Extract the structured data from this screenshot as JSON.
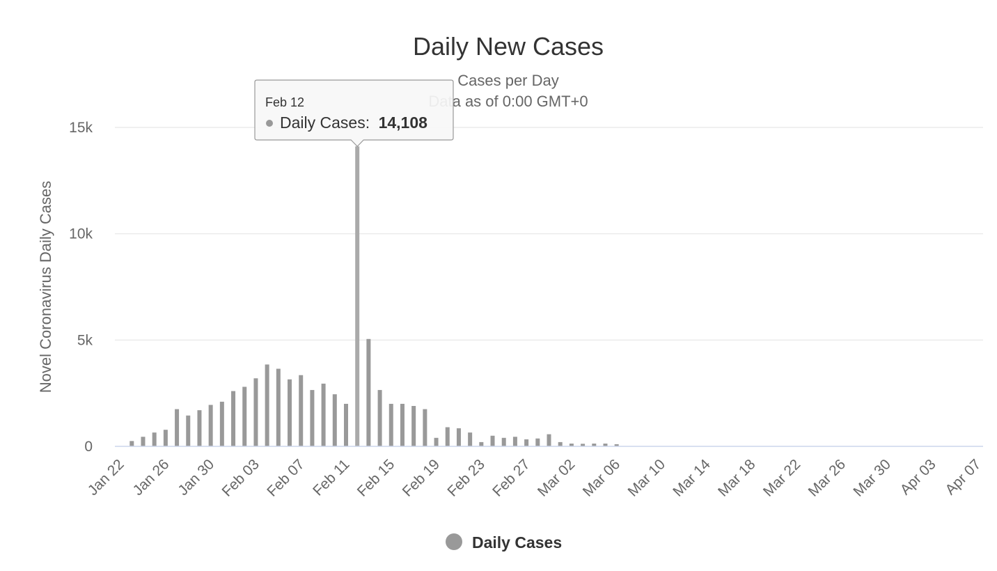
{
  "chart_data": {
    "type": "bar",
    "title": "Daily New Cases",
    "subtitle_lines": [
      "Cases per Day",
      "Data as of 0:00 GMT+0"
    ],
    "ylabel": "Novel Coronavirus Daily Cases",
    "xlabel": "",
    "ylim": [
      0,
      15000
    ],
    "y_ticks": [
      0,
      5000,
      10000,
      15000
    ],
    "y_tick_labels": [
      "0",
      "5k",
      "10k",
      "15k"
    ],
    "grid": true,
    "legend_position": "bottom-center",
    "bar_color": "#999999",
    "highlight_color": "#aaaaaa",
    "categories": [
      "Jan 22",
      "Jan 23",
      "Jan 24",
      "Jan 25",
      "Jan 26",
      "Jan 27",
      "Jan 28",
      "Jan 29",
      "Jan 30",
      "Jan 31",
      "Feb 01",
      "Feb 02",
      "Feb 03",
      "Feb 04",
      "Feb 05",
      "Feb 06",
      "Feb 07",
      "Feb 08",
      "Feb 09",
      "Feb 10",
      "Feb 11",
      "Feb 12",
      "Feb 13",
      "Feb 14",
      "Feb 15",
      "Feb 16",
      "Feb 17",
      "Feb 18",
      "Feb 19",
      "Feb 20",
      "Feb 21",
      "Feb 22",
      "Feb 23",
      "Feb 24",
      "Feb 25",
      "Feb 26",
      "Feb 27",
      "Feb 28",
      "Feb 29",
      "Mar 01",
      "Mar 02",
      "Mar 03",
      "Mar 04",
      "Mar 05",
      "Mar 06",
      "Mar 07",
      "Mar 08",
      "Mar 09",
      "Mar 10",
      "Mar 11",
      "Mar 12",
      "Mar 13",
      "Mar 14",
      "Mar 15",
      "Mar 16",
      "Mar 17",
      "Mar 18",
      "Mar 19",
      "Mar 20",
      "Mar 21",
      "Mar 22",
      "Mar 23",
      "Mar 24",
      "Mar 25",
      "Mar 26",
      "Mar 27",
      "Mar 28",
      "Mar 29",
      "Mar 30",
      "Mar 31",
      "Apr 01",
      "Apr 02",
      "Apr 03",
      "Apr 04",
      "Apr 05",
      "Apr 06",
      "Apr 07"
    ],
    "x_tick_labels": [
      "Jan 22",
      "Jan 26",
      "Jan 30",
      "Feb 03",
      "Feb 07",
      "Feb 11",
      "Feb 15",
      "Feb 19",
      "Feb 23",
      "Feb 27",
      "Mar 02",
      "Mar 06",
      "Mar 10",
      "Mar 14",
      "Mar 18",
      "Mar 22",
      "Mar 26",
      "Mar 30",
      "Apr 03",
      "Apr 07"
    ],
    "series": [
      {
        "name": "Daily Cases",
        "values": [
          0,
          250,
          450,
          650,
          780,
          1750,
          1450,
          1700,
          1950,
          2100,
          2600,
          2800,
          3200,
          3850,
          3650,
          3150,
          3350,
          2650,
          2950,
          2450,
          2000,
          14108,
          5050,
          2650,
          2000,
          2000,
          1900,
          1750,
          400,
          900,
          850,
          650,
          200,
          500,
          400,
          450,
          330,
          370,
          570,
          200,
          130,
          120,
          130,
          130,
          100,
          0,
          0,
          0,
          0,
          0,
          0,
          0,
          0,
          0,
          0,
          0,
          0,
          0,
          0,
          0,
          0,
          0,
          0,
          0,
          0,
          0,
          0,
          0,
          0,
          0,
          0,
          0,
          0,
          0,
          0,
          0,
          0
        ]
      }
    ],
    "highlight_index": 21,
    "tooltip": {
      "date": "Feb 12",
      "series_label": "Daily Cases:",
      "value_text": "14,108"
    },
    "legend_label": "Daily Cases"
  }
}
